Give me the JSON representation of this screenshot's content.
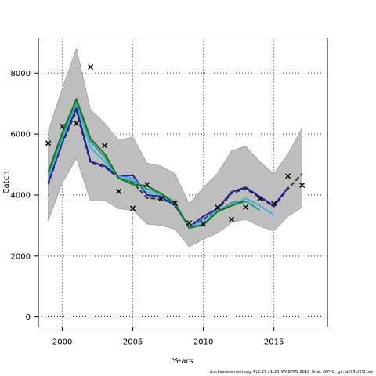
{
  "chart_data": {
    "type": "line",
    "xlabel": "Years",
    "ylabel": "Catch",
    "xlim": [
      1998.3,
      2018.8
    ],
    "ylim": [
      -330,
      9150
    ],
    "x_ticks": [
      2000,
      2005,
      2010,
      2015
    ],
    "y_ticks": [
      0,
      2000,
      4000,
      6000,
      8000
    ],
    "grid": "dotted",
    "band": {
      "x": [
        1999,
        2000,
        2001,
        2002,
        2003,
        2004,
        2005,
        2006,
        2007,
        2008,
        2009,
        2010,
        2011,
        2012,
        2013,
        2014,
        2015,
        2016,
        2017
      ],
      "upper": [
        6100,
        7500,
        8800,
        6800,
        6350,
        5800,
        5900,
        5050,
        4950,
        4700,
        3700,
        4250,
        4700,
        5450,
        5600,
        5100,
        4700,
        5350,
        6200
      ],
      "lower": [
        3150,
        4400,
        5200,
        3800,
        3820,
        3550,
        3500,
        3050,
        3000,
        2880,
        2300,
        2550,
        2750,
        3100,
        3200,
        2980,
        2820,
        3300,
        3600
      ],
      "color": "#bebebe"
    },
    "observed": {
      "marker": "x",
      "x": [
        1999,
        2000,
        2001,
        2002,
        2003,
        2004,
        2005,
        2006,
        2007,
        2008,
        2009,
        2010,
        2011,
        2012,
        2013,
        2014,
        2015,
        2016,
        2017
      ],
      "y": [
        5700,
        6250,
        6350,
        8200,
        5620,
        4120,
        3560,
        4340,
        3880,
        3740,
        3080,
        3050,
        3600,
        3200,
        3600,
        3880,
        3720,
        4620,
        4320
      ]
    },
    "series": [
      {
        "color": "#333333",
        "dash": "6,3",
        "x": [
          1999,
          2000,
          2001,
          2002,
          2003,
          2004,
          2005,
          2006,
          2007,
          2008,
          2009,
          2010,
          2011,
          2012,
          2013,
          2014,
          2015,
          2016,
          2017
        ],
        "y": [
          4350,
          5700,
          6750,
          5050,
          4920,
          4560,
          4420,
          3900,
          3870,
          3700,
          2920,
          3200,
          3500,
          4060,
          4200,
          3920,
          3620,
          4200,
          4700
        ]
      },
      {
        "color": "#1f1fa6",
        "x": [
          1999,
          2000,
          2001,
          2002,
          2003,
          2004,
          2005,
          2006,
          2007,
          2008,
          2009,
          2010,
          2011,
          2012,
          2013,
          2014,
          2015,
          2016
        ],
        "y": [
          4400,
          5750,
          6850,
          5100,
          4950,
          4600,
          4650,
          4000,
          3950,
          3650,
          2950,
          3300,
          3550,
          4100,
          4250,
          3950,
          3650,
          4250
        ]
      },
      {
        "color": "#45b3d6",
        "x": [
          1999,
          2000,
          2001,
          2002,
          2003,
          2004,
          2005,
          2006,
          2007,
          2008,
          2009,
          2010,
          2011,
          2012,
          2013,
          2014,
          2015
        ],
        "y": [
          4550,
          5850,
          7000,
          5550,
          5100,
          4600,
          4550,
          4100,
          4000,
          3700,
          2950,
          3150,
          3500,
          3650,
          3900,
          3650,
          3350
        ]
      },
      {
        "color": "#2aa198",
        "x": [
          1999,
          2000,
          2001,
          2002,
          2003,
          2004,
          2005,
          2006,
          2007,
          2008,
          2009,
          2010,
          2011,
          2012,
          2013,
          2014
        ],
        "y": [
          4650,
          5950,
          7050,
          5750,
          5250,
          4550,
          4450,
          4200,
          4050,
          3750,
          2920,
          3050,
          3450,
          3750,
          3800,
          3500
        ]
      },
      {
        "color": "#187818",
        "x": [
          1999,
          2000,
          2001,
          2002,
          2003,
          2004,
          2005,
          2006,
          2007,
          2008,
          2009,
          2010,
          2011,
          2012,
          2013
        ],
        "y": [
          4750,
          6050,
          7150,
          5850,
          5350,
          4550,
          4350,
          4300,
          4050,
          3700,
          2920,
          3020,
          3450,
          3650,
          3800
        ]
      }
    ]
  },
  "footer": {
    "text": "stockassessment.org, PLE.27.21-23_WGBFAS_2018_final, r9741 , git: a295ef2f11ae"
  }
}
